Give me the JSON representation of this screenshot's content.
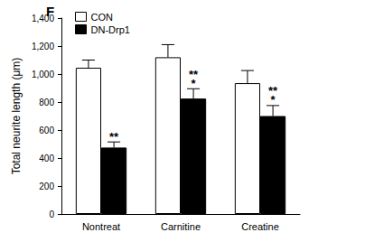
{
  "chart_data": {
    "type": "bar",
    "title": "F",
    "categories": [
      "Nontreat",
      "Carnitine",
      "Creatine"
    ],
    "series": [
      {
        "name": "CON",
        "color": "#ffffff",
        "values": [
          1045,
          1120,
          935
        ],
        "errors": [
          55,
          90,
          90
        ]
      },
      {
        "name": "DN-Drp1",
        "color": "#000000",
        "values": [
          475,
          825,
          700
        ],
        "errors": [
          40,
          70,
          75
        ],
        "significance": [
          [
            "**"
          ],
          [
            "**",
            "*"
          ],
          [
            "**",
            "*"
          ]
        ]
      }
    ],
    "y_label": "Total neurite length (μm)",
    "ylim": [
      0,
      1400
    ],
    "yticks": [
      0,
      200,
      400,
      600,
      800,
      1000,
      1200,
      1400
    ],
    "grid": false,
    "legend": "upper left"
  }
}
